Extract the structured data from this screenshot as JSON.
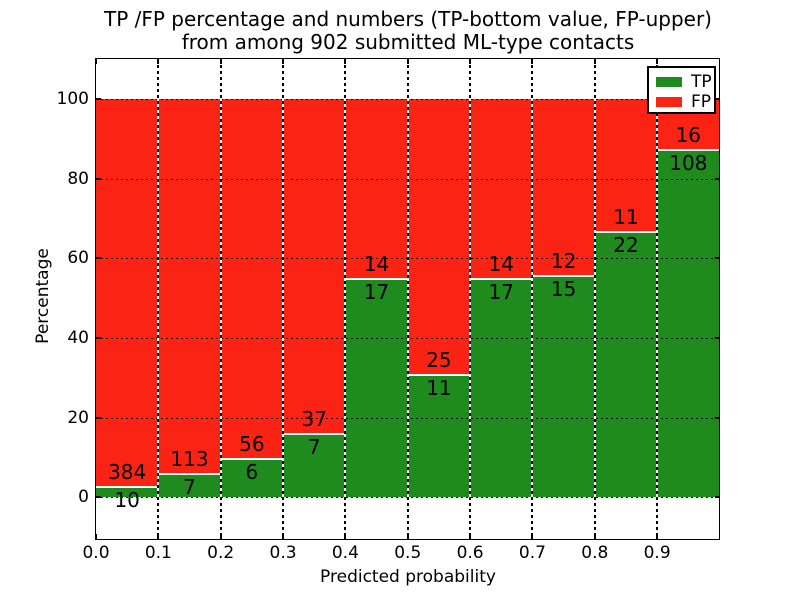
{
  "chart_data": {
    "type": "bar",
    "stacked": true,
    "normalized": "each bin stacks to 100 percent",
    "title_line1": "TP /FP percentage and numbers (TP-bottom value, FP-upper)",
    "title_line2": "from among 902 submitted ML-type contacts",
    "xlabel": "Predicted probability",
    "ylabel": "Percentage",
    "categories": [
      "0.0-0.1",
      "0.1-0.2",
      "0.2-0.3",
      "0.3-0.4",
      "0.4-0.5",
      "0.5-0.6",
      "0.6-0.7",
      "0.7-0.8",
      "0.8-0.9",
      "0.9-1.0"
    ],
    "series": [
      {
        "name": "TP",
        "color": "#1f8b1f",
        "counts": [
          10,
          7,
          6,
          7,
          17,
          11,
          17,
          15,
          22,
          108
        ]
      },
      {
        "name": "FP",
        "color": "#fa2314",
        "counts": [
          384,
          113,
          56,
          37,
          14,
          25,
          14,
          12,
          11,
          16
        ]
      }
    ],
    "tp_percent_of_bin": [
      2.5,
      5.8,
      9.7,
      15.9,
      54.8,
      30.6,
      54.8,
      55.6,
      66.7,
      87.1
    ],
    "xlim": [
      0.0,
      1.0
    ],
    "ylim": [
      -10.5,
      110.0
    ],
    "xticks": {
      "values": [
        0.0,
        0.1,
        0.2,
        0.3,
        0.4,
        0.5,
        0.6,
        0.7,
        0.8,
        0.9
      ],
      "labels": [
        "0.0",
        "0.1",
        "0.2",
        "0.3",
        "0.4",
        "0.5",
        "0.6",
        "0.7",
        "0.8",
        "0.9"
      ]
    },
    "yticks": {
      "values": [
        0,
        20,
        40,
        60,
        80,
        100
      ],
      "labels": [
        "0",
        "20",
        "40",
        "60",
        "80",
        "100"
      ]
    },
    "grid": true,
    "grid_style": "dotted black",
    "legend_position": "upper right",
    "axis_color": "#000000",
    "background_color": "#ffffff"
  }
}
